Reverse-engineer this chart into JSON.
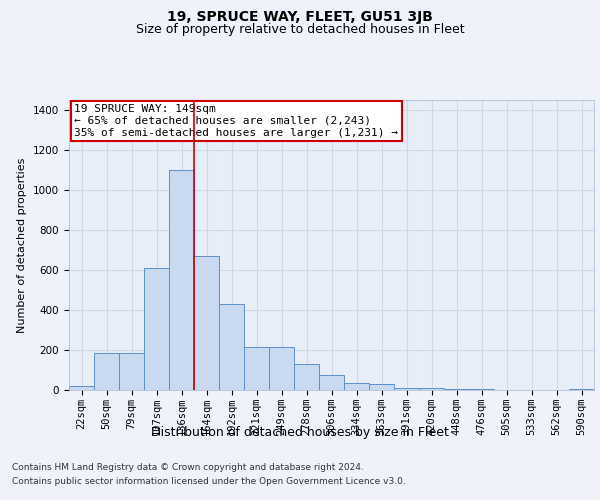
{
  "title": "19, SPRUCE WAY, FLEET, GU51 3JB",
  "subtitle": "Size of property relative to detached houses in Fleet",
  "xlabel": "Distribution of detached houses by size in Fleet",
  "ylabel": "Number of detached properties",
  "footer_line1": "Contains HM Land Registry data © Crown copyright and database right 2024.",
  "footer_line2": "Contains public sector information licensed under the Open Government Licence v3.0.",
  "bar_labels": [
    "22sqm",
    "50sqm",
    "79sqm",
    "107sqm",
    "136sqm",
    "164sqm",
    "192sqm",
    "221sqm",
    "249sqm",
    "278sqm",
    "306sqm",
    "334sqm",
    "363sqm",
    "391sqm",
    "420sqm",
    "448sqm",
    "476sqm",
    "505sqm",
    "533sqm",
    "562sqm",
    "590sqm"
  ],
  "bar_values": [
    20,
    185,
    185,
    610,
    1100,
    670,
    430,
    215,
    215,
    130,
    75,
    35,
    30,
    10,
    10,
    5,
    5,
    2,
    2,
    1,
    5
  ],
  "bar_color": "#c9d9f0",
  "bar_edge_color": "#5b8fc9",
  "vline_x_index": 4.5,
  "vline_color": "#cc0000",
  "annotation_text": "19 SPRUCE WAY: 149sqm\n← 65% of detached houses are smaller (2,243)\n35% of semi-detached houses are larger (1,231) →",
  "annotation_box_color": "#cc0000",
  "ylim": [
    0,
    1450
  ],
  "yticks": [
    0,
    200,
    400,
    600,
    800,
    1000,
    1200,
    1400
  ],
  "background_color": "#eef2fb",
  "plot_bg_color": "#e8eef8",
  "grid_color": "#d0d8e8",
  "title_fontsize": 10,
  "subtitle_fontsize": 9,
  "xlabel_fontsize": 9,
  "ylabel_fontsize": 8,
  "tick_fontsize": 7.5,
  "annotation_fontsize": 8,
  "footer_fontsize": 6.5
}
